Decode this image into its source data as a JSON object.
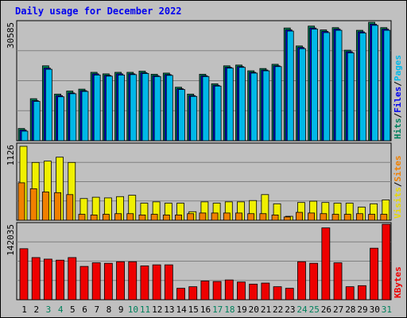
{
  "title": "Daily usage for December 2022",
  "colors": {
    "background": "#c0c0c0",
    "plot_bg": "#c0c0c0",
    "title": "#0000ee",
    "hits": "#00805c",
    "files": "#0000ee",
    "pages": "#00b8e8",
    "visits": "#f0f000",
    "sites": "#f08000",
    "kbytes": "#ee0000",
    "weekend_label": "#00805c",
    "weekday_label": "#000000",
    "gridline": "#808080",
    "frame": "#000000"
  },
  "legends": {
    "top": [
      {
        "label": "Hits",
        "color": "#00805c"
      },
      {
        "label": "/",
        "color": "#000000"
      },
      {
        "label": "Files",
        "color": "#0000ee"
      },
      {
        "label": "/",
        "color": "#000000"
      },
      {
        "label": "Pages",
        "color": "#00b8e8"
      }
    ],
    "middle": [
      {
        "label": "Visits",
        "color": "#e8d800"
      },
      {
        "label": "/",
        "color": "#000000"
      },
      {
        "label": "Sites",
        "color": "#f08000"
      }
    ],
    "bottom": [
      {
        "label": "KBytes",
        "color": "#ee0000"
      }
    ]
  },
  "chart_data": [
    {
      "type": "bar",
      "panel": "hits-files-pages",
      "ymax_label": "30585",
      "ylim": [
        0,
        30585
      ],
      "categories": [
        "1",
        "2",
        "3",
        "4",
        "5",
        "6",
        "7",
        "8",
        "9",
        "10",
        "11",
        "12",
        "13",
        "14",
        "15",
        "16",
        "17",
        "18",
        "19",
        "20",
        "21",
        "22",
        "23",
        "24",
        "25",
        "26",
        "27",
        "28",
        "29",
        "30",
        "31"
      ],
      "series": [
        {
          "name": "Hits",
          "values": [
            3200,
            11000,
            19600,
            12200,
            13000,
            13500,
            17900,
            17500,
            17900,
            17900,
            18200,
            17400,
            17700,
            14000,
            12200,
            17400,
            14900,
            19600,
            19800,
            18300,
            18900,
            20000,
            29500,
            24800,
            30000,
            29000,
            29600,
            23700,
            28900,
            31000,
            29600
          ]
        },
        {
          "name": "Files",
          "values": [
            2800,
            10500,
            19000,
            11800,
            12500,
            13100,
            17500,
            17100,
            17500,
            17500,
            17800,
            17000,
            17300,
            13600,
            11800,
            17000,
            14500,
            19200,
            19400,
            17900,
            18500,
            19600,
            29000,
            24400,
            29500,
            28600,
            29200,
            23300,
            28500,
            30500,
            29200
          ]
        },
        {
          "name": "Pages",
          "values": [
            2500,
            10300,
            18700,
            11500,
            12300,
            12900,
            17200,
            16900,
            17200,
            17300,
            17600,
            16800,
            17100,
            13400,
            11600,
            16800,
            14300,
            19000,
            19200,
            17700,
            18300,
            19400,
            28700,
            24100,
            29200,
            28300,
            28900,
            23000,
            28200,
            30200,
            28900
          ]
        }
      ]
    },
    {
      "type": "bar",
      "panel": "visits-sites",
      "ymax_label": "1126",
      "ylim": [
        0,
        1126
      ],
      "categories": [
        "1",
        "2",
        "3",
        "4",
        "5",
        "6",
        "7",
        "8",
        "9",
        "10",
        "11",
        "12",
        "13",
        "14",
        "15",
        "16",
        "17",
        "18",
        "19",
        "20",
        "21",
        "22",
        "23",
        "24",
        "25",
        "26",
        "27",
        "28",
        "29",
        "30",
        "31"
      ],
      "series": [
        {
          "name": "Visits",
          "values": [
            1126,
            880,
            900,
            960,
            880,
            330,
            350,
            340,
            360,
            380,
            260,
            280,
            260,
            260,
            130,
            280,
            260,
            280,
            280,
            300,
            390,
            250,
            60,
            270,
            290,
            270,
            260,
            260,
            200,
            250,
            310
          ]
        },
        {
          "name": "Sites",
          "values": [
            570,
            480,
            430,
            420,
            390,
            90,
            80,
            90,
            100,
            100,
            80,
            90,
            80,
            80,
            100,
            110,
            110,
            110,
            110,
            100,
            100,
            80,
            50,
            120,
            110,
            100,
            90,
            90,
            100,
            90,
            90
          ]
        }
      ]
    },
    {
      "type": "bar",
      "panel": "kbytes",
      "ymax_label": "142035",
      "ylim": [
        0,
        142035
      ],
      "categories": [
        "1",
        "2",
        "3",
        "4",
        "5",
        "6",
        "7",
        "8",
        "9",
        "10",
        "11",
        "12",
        "13",
        "14",
        "15",
        "16",
        "17",
        "18",
        "19",
        "20",
        "21",
        "22",
        "23",
        "24",
        "25",
        "26",
        "27",
        "28",
        "29",
        "30",
        "31"
      ],
      "series": [
        {
          "name": "KBytes",
          "values": [
            98000,
            81000,
            78000,
            76000,
            81000,
            64000,
            71000,
            70000,
            73000,
            73000,
            65000,
            67000,
            67000,
            22000,
            25000,
            36000,
            35000,
            38000,
            34000,
            30000,
            32000,
            25000,
            22000,
            73000,
            70000,
            138000,
            71000,
            25000,
            27000,
            99000,
            145000
          ]
        }
      ]
    }
  ],
  "days": [
    {
      "label": "1",
      "weekend": false
    },
    {
      "label": "2",
      "weekend": false
    },
    {
      "label": "3",
      "weekend": true
    },
    {
      "label": "4",
      "weekend": true
    },
    {
      "label": "5",
      "weekend": false
    },
    {
      "label": "6",
      "weekend": false
    },
    {
      "label": "7",
      "weekend": false
    },
    {
      "label": "8",
      "weekend": false
    },
    {
      "label": "9",
      "weekend": false
    },
    {
      "label": "10",
      "weekend": true
    },
    {
      "label": "11",
      "weekend": true
    },
    {
      "label": "12",
      "weekend": false
    },
    {
      "label": "13",
      "weekend": false
    },
    {
      "label": "14",
      "weekend": false
    },
    {
      "label": "15",
      "weekend": false
    },
    {
      "label": "16",
      "weekend": false
    },
    {
      "label": "17",
      "weekend": true
    },
    {
      "label": "18",
      "weekend": true
    },
    {
      "label": "19",
      "weekend": false
    },
    {
      "label": "20",
      "weekend": false
    },
    {
      "label": "21",
      "weekend": false
    },
    {
      "label": "22",
      "weekend": false
    },
    {
      "label": "23",
      "weekend": false
    },
    {
      "label": "24",
      "weekend": true
    },
    {
      "label": "25",
      "weekend": true
    },
    {
      "label": "26",
      "weekend": false
    },
    {
      "label": "27",
      "weekend": false
    },
    {
      "label": "28",
      "weekend": false
    },
    {
      "label": "29",
      "weekend": false
    },
    {
      "label": "30",
      "weekend": false
    },
    {
      "label": "31",
      "weekend": true
    }
  ]
}
